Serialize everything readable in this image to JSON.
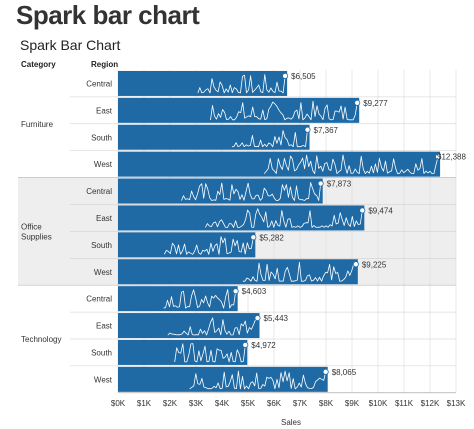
{
  "page": {
    "title": "Spark bar chart"
  },
  "colors": {
    "bar": "#1f6aa5",
    "band": "#eeeeee",
    "spark": "#ffffff",
    "grid": "#d9d9d9"
  },
  "chart_data": {
    "type": "bar",
    "title": "Spark Bar Chart",
    "headers": {
      "category": "Category",
      "region": "Region"
    },
    "xlabel": "Sales",
    "xlim": [
      0,
      13000
    ],
    "xticks": [
      0,
      1000,
      2000,
      3000,
      4000,
      5000,
      6000,
      7000,
      8000,
      9000,
      10000,
      11000,
      12000,
      13000
    ],
    "xtick_labels": [
      "$0K",
      "$1K",
      "$2K",
      "$3K",
      "$4K",
      "$5K",
      "$6K",
      "$7K",
      "$8K",
      "$9K",
      "$10K",
      "$11K",
      "$12K",
      "$13K"
    ],
    "groups": [
      {
        "category": "Furniture",
        "rows": [
          {
            "region": "Central",
            "value": 6505,
            "label": "$6,505"
          },
          {
            "region": "East",
            "value": 9277,
            "label": "$9,277"
          },
          {
            "region": "South",
            "value": 7367,
            "label": "$7,367"
          },
          {
            "region": "West",
            "value": 12388,
            "label": "$12,388"
          }
        ]
      },
      {
        "category": "Office Supplies",
        "category_lines": [
          "Office",
          "Supplies"
        ],
        "rows": [
          {
            "region": "Central",
            "value": 7873,
            "label": "$7,873"
          },
          {
            "region": "East",
            "value": 9474,
            "label": "$9,474"
          },
          {
            "region": "South",
            "value": 5282,
            "label": "$5,282"
          },
          {
            "region": "West",
            "value": 9225,
            "label": "$9,225"
          }
        ]
      },
      {
        "category": "Technology",
        "rows": [
          {
            "region": "Central",
            "value": 4603,
            "label": "$4,603"
          },
          {
            "region": "East",
            "value": 5443,
            "label": "$5,443"
          },
          {
            "region": "South",
            "value": 4972,
            "label": "$4,972"
          },
          {
            "region": "West",
            "value": 8065,
            "label": "$8,065"
          }
        ]
      }
    ]
  }
}
